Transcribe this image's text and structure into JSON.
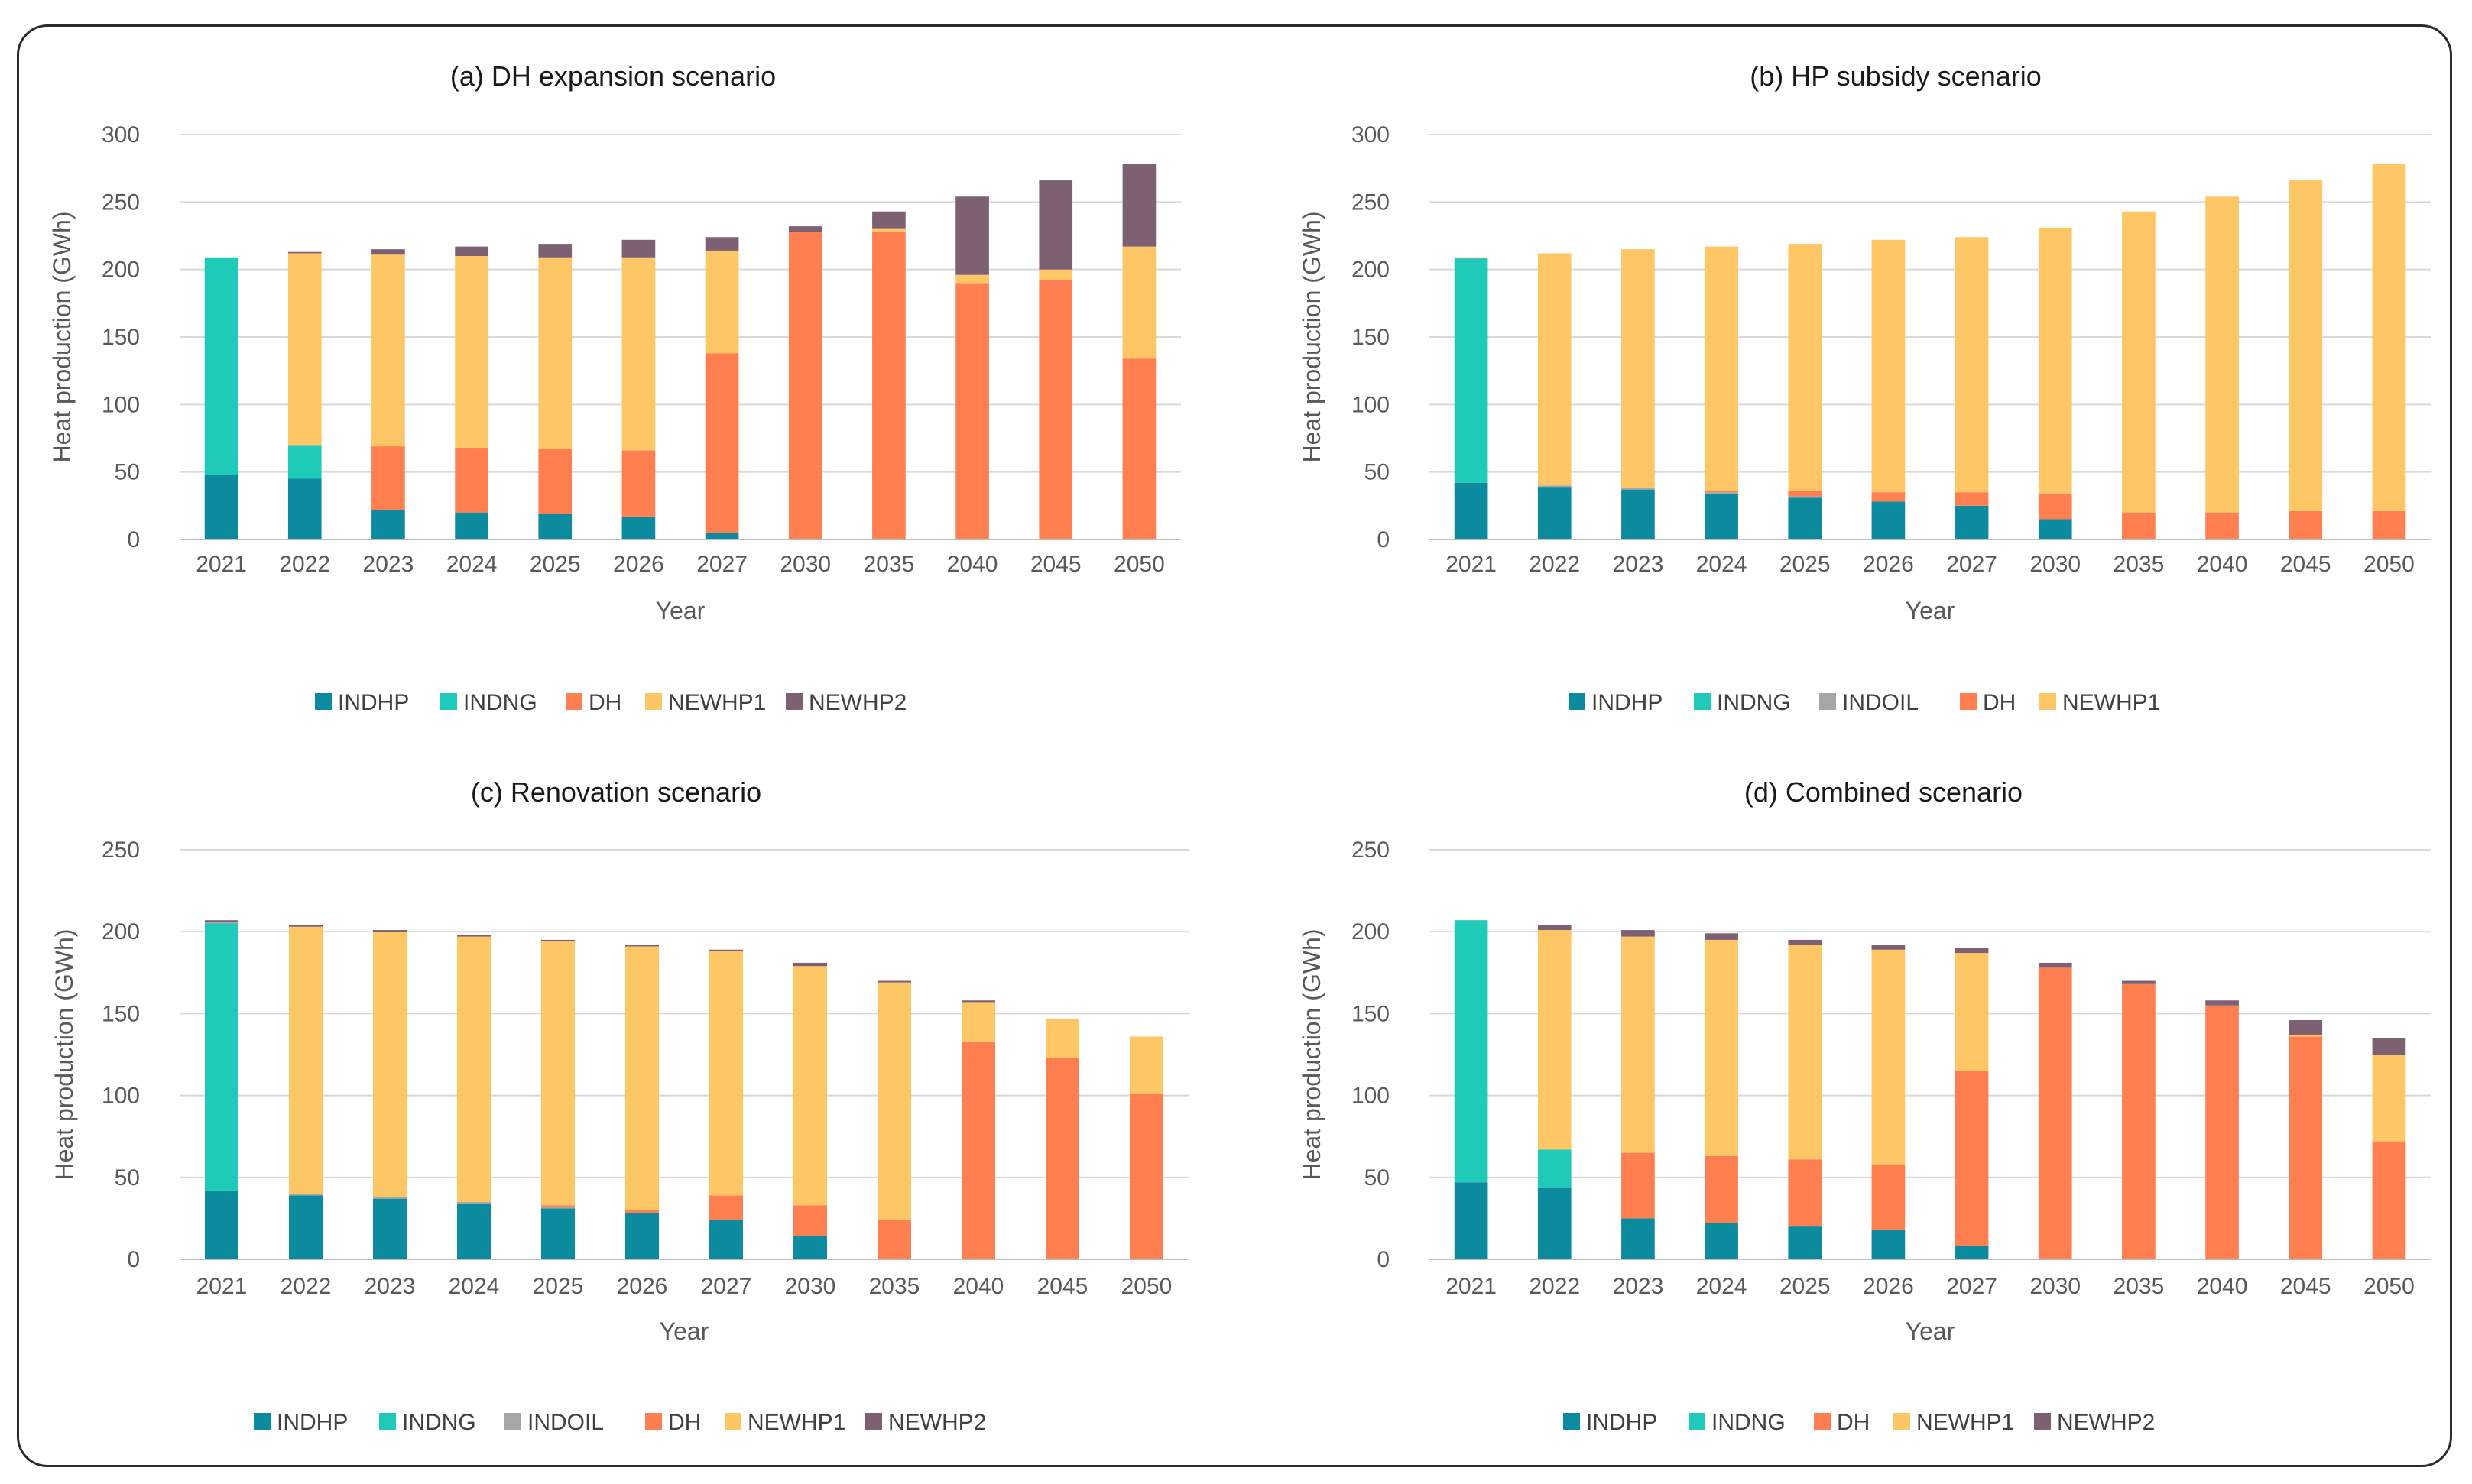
{
  "colors": {
    "INDHP": "#0c8a9e",
    "INDNG": "#1fcab8",
    "INDOIL": "#a6a6a6",
    "DH": "#ff7f50",
    "NEWHP1": "#fec665",
    "NEWHP2": "#7d6173",
    "grid": "#d9d9d9",
    "axis": "#bfbfbf"
  },
  "chart_data": [
    {
      "type": "bar",
      "stacked": true,
      "title": "(a) DH expansion scenario",
      "xlabel": "Year",
      "ylabel": "Heat production (GWh)",
      "ylim": [
        0,
        300
      ],
      "yticks": [
        0,
        50,
        100,
        150,
        200,
        250,
        300
      ],
      "categories": [
        "2021",
        "2022",
        "2023",
        "2024",
        "2025",
        "2026",
        "2027",
        "2030",
        "2035",
        "2040",
        "2045",
        "2050"
      ],
      "legend": [
        "INDHP",
        "INDNG",
        "DH",
        "NEWHP1",
        "NEWHP2"
      ],
      "series": [
        {
          "name": "INDHP",
          "values": [
            48,
            45,
            22,
            20,
            19,
            17,
            5,
            0,
            0,
            0,
            0,
            0
          ]
        },
        {
          "name": "INDNG",
          "values": [
            161,
            25,
            0,
            0,
            0,
            0,
            0,
            0,
            0,
            0,
            0,
            0
          ]
        },
        {
          "name": "DH",
          "values": [
            0,
            0,
            47,
            48,
            48,
            49,
            133,
            228,
            228,
            190,
            192,
            134
          ]
        },
        {
          "name": "NEWHP1",
          "values": [
            0,
            142,
            142,
            142,
            142,
            143,
            76,
            0,
            2,
            6,
            8,
            83
          ]
        },
        {
          "name": "NEWHP2",
          "values": [
            0,
            1,
            4,
            7,
            10,
            13,
            10,
            4,
            13,
            58,
            66,
            61
          ]
        }
      ]
    },
    {
      "type": "bar",
      "stacked": true,
      "title": "(b) HP subsidy scenario",
      "xlabel": "Year",
      "ylabel": "Heat production (GWh)",
      "ylim": [
        0,
        300
      ],
      "yticks": [
        0,
        50,
        100,
        150,
        200,
        250,
        300
      ],
      "categories": [
        "2021",
        "2022",
        "2023",
        "2024",
        "2025",
        "2026",
        "2027",
        "2030",
        "2035",
        "2040",
        "2045",
        "2050"
      ],
      "legend": [
        "INDHP",
        "INDNG",
        "INDOIL",
        "DH",
        "NEWHP1"
      ],
      "series": [
        {
          "name": "INDHP",
          "values": [
            42,
            39,
            37,
            34,
            31,
            28,
            25,
            15,
            0,
            0,
            0,
            0
          ]
        },
        {
          "name": "INDNG",
          "values": [
            166,
            0,
            0,
            0,
            0,
            0,
            0,
            0,
            0,
            0,
            0,
            0
          ]
        },
        {
          "name": "INDOIL",
          "values": [
            1,
            1,
            1,
            1,
            1,
            0,
            0,
            0,
            0,
            0,
            0,
            0
          ]
        },
        {
          "name": "DH",
          "values": [
            0,
            0,
            0,
            1,
            4,
            7,
            10,
            19,
            20,
            20,
            21,
            21
          ]
        },
        {
          "name": "NEWHP1",
          "values": [
            0,
            172,
            177,
            181,
            183,
            187,
            189,
            197,
            223,
            234,
            245,
            257
          ]
        }
      ]
    },
    {
      "type": "bar",
      "stacked": true,
      "title": "(c) Renovation scenario",
      "xlabel": "Year",
      "ylabel": "Heat production (GWh)",
      "ylim": [
        0,
        250
      ],
      "yticks": [
        0,
        50,
        100,
        150,
        200,
        250
      ],
      "categories": [
        "2021",
        "2022",
        "2023",
        "2024",
        "2025",
        "2026",
        "2027",
        "2030",
        "2035",
        "2040",
        "2045",
        "2050"
      ],
      "legend": [
        "INDHP",
        "INDNG",
        "INDOIL",
        "DH",
        "NEWHP1",
        "NEWHP2"
      ],
      "series": [
        {
          "name": "INDHP",
          "values": [
            42,
            39,
            37,
            34,
            31,
            28,
            24,
            14,
            0,
            0,
            0,
            0
          ]
        },
        {
          "name": "INDNG",
          "values": [
            163,
            0,
            0,
            0,
            0,
            0,
            0,
            0,
            0,
            0,
            0,
            0
          ]
        },
        {
          "name": "INDOIL",
          "values": [
            1,
            1,
            1,
            1,
            1,
            0,
            0,
            0,
            0,
            0,
            0,
            0
          ]
        },
        {
          "name": "DH",
          "values": [
            0,
            0,
            0,
            0,
            1,
            2,
            15,
            19,
            24,
            133,
            123,
            101
          ]
        },
        {
          "name": "NEWHP1",
          "values": [
            0,
            163,
            162,
            162,
            161,
            161,
            149,
            146,
            145,
            24,
            24,
            35
          ]
        },
        {
          "name": "NEWHP2",
          "values": [
            1,
            1,
            1,
            1,
            1,
            1,
            1,
            2,
            1,
            1,
            0,
            0
          ]
        }
      ]
    },
    {
      "type": "bar",
      "stacked": true,
      "title": "(d) Combined scenario",
      "xlabel": "Year",
      "ylabel": "Heat production (GWh)",
      "ylim": [
        0,
        250
      ],
      "yticks": [
        0,
        50,
        100,
        150,
        200,
        250
      ],
      "categories": [
        "2021",
        "2022",
        "2023",
        "2024",
        "2025",
        "2026",
        "2027",
        "2030",
        "2035",
        "2040",
        "2045",
        "2050"
      ],
      "legend": [
        "INDHP",
        "INDNG",
        "DH",
        "NEWHP1",
        "NEWHP2"
      ],
      "series": [
        {
          "name": "INDHP",
          "values": [
            47,
            44,
            25,
            22,
            20,
            18,
            8,
            0,
            0,
            0,
            0,
            0
          ]
        },
        {
          "name": "INDNG",
          "values": [
            160,
            23,
            0,
            0,
            0,
            0,
            0,
            0,
            0,
            0,
            0,
            0
          ]
        },
        {
          "name": "DH",
          "values": [
            0,
            0,
            40,
            41,
            41,
            40,
            107,
            178,
            168,
            155,
            136,
            72
          ]
        },
        {
          "name": "NEWHP1",
          "values": [
            0,
            134,
            132,
            132,
            131,
            131,
            72,
            0,
            0,
            0,
            1,
            53
          ]
        },
        {
          "name": "NEWHP2",
          "values": [
            0,
            3,
            4,
            4,
            3,
            3,
            3,
            3,
            2,
            3,
            9,
            10
          ]
        }
      ]
    }
  ]
}
